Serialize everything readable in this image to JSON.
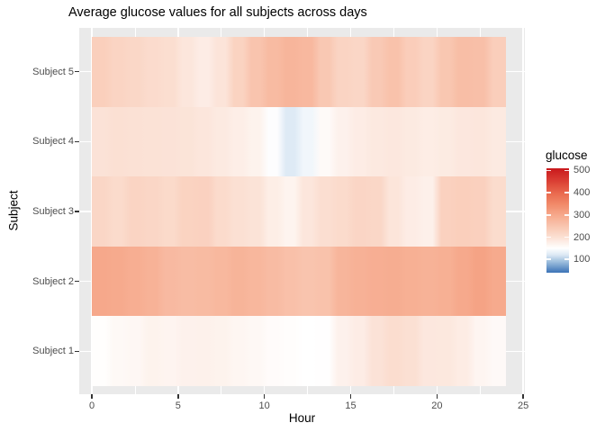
{
  "title": "Average glucose values for all subjects across days",
  "chart_data": {
    "type": "heatmap",
    "title": "Average glucose values for all subjects across days",
    "xlabel": "Hour",
    "ylabel": "Subject",
    "x_ticks": [
      0,
      5,
      10,
      15,
      20,
      25
    ],
    "x_minor_ticks": [
      2.5,
      7.5,
      12.5,
      17.5,
      22.5
    ],
    "x_bins": {
      "start": 0,
      "end": 24,
      "count": 24
    },
    "panel_bg": "#EAEAEA",
    "grid": true,
    "rows": [
      {
        "label": "Subject 5",
        "values": [
          232,
          222,
          216,
          209,
          204,
          190,
          180,
          193,
          225,
          252,
          268,
          278,
          272,
          245,
          222,
          218,
          242,
          255,
          235,
          222,
          247,
          262,
          260,
          233
        ]
      },
      {
        "label": "Subject 4",
        "values": [
          196,
          200,
          198,
          197,
          196,
          194,
          190,
          184,
          177,
          170,
          148,
          122,
          138,
          158,
          172,
          180,
          185,
          188,
          184,
          179,
          183,
          188,
          190,
          184
        ]
      },
      {
        "label": "Subject 3",
        "values": [
          218,
          210,
          222,
          218,
          212,
          225,
          227,
          210,
          200,
          195,
          178,
          168,
          190,
          203,
          210,
          220,
          216,
          192,
          180,
          174,
          228,
          232,
          229,
          208
        ]
      },
      {
        "label": "Subject 2",
        "values": [
          300,
          297,
          290,
          283,
          270,
          265,
          268,
          273,
          280,
          275,
          267,
          258,
          252,
          255,
          278,
          285,
          289,
          292,
          287,
          283,
          287,
          298,
          308,
          297
        ]
      },
      {
        "label": "Subject 1",
        "values": [
          152,
          160,
          163,
          170,
          167,
          172,
          173,
          170,
          165,
          161,
          156,
          153,
          150,
          151,
          172,
          180,
          196,
          205,
          200,
          188,
          187,
          181,
          166,
          159
        ]
      }
    ],
    "legend": {
      "title": "glucose",
      "ticks": [
        500,
        400,
        300,
        200,
        100
      ],
      "min": 40,
      "max": 510,
      "color_stops": [
        {
          "value": 40,
          "color": "#3B72B6"
        },
        {
          "value": 90,
          "color": "#9FC0DE"
        },
        {
          "value": 120,
          "color": "#DCE8F4"
        },
        {
          "value": 150,
          "color": "#FFFFFF"
        },
        {
          "value": 200,
          "color": "#FBE0D3"
        },
        {
          "value": 250,
          "color": "#F9C5AF"
        },
        {
          "value": 300,
          "color": "#F6A88B"
        },
        {
          "value": 350,
          "color": "#F18968"
        },
        {
          "value": 400,
          "color": "#E9684D"
        },
        {
          "value": 450,
          "color": "#DB4135"
        },
        {
          "value": 510,
          "color": "#C9181C"
        }
      ]
    }
  }
}
